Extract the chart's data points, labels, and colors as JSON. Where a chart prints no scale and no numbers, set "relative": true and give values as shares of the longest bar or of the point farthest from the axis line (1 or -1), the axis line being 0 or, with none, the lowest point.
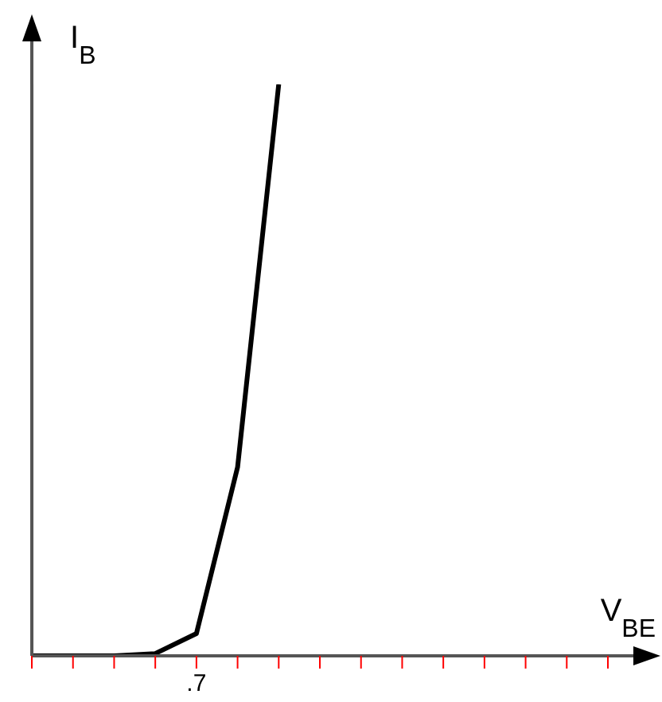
{
  "chart_data": {
    "type": "line",
    "xlabel": "V$_{BE}$",
    "ylabel": "I$_{B}$",
    "relative": true,
    "categories": [
      null,
      null,
      null,
      null,
      null,
      null,
      null,
      null,
      null,
      null,
      null,
      null,
      null,
      null,
      null
    ],
    "series": [
      {
        "color": "#000000",
        "values": [
          0,
          0,
          0,
          0.004,
          0.039,
          0.33,
          1,
          null,
          null,
          null,
          null,
          null,
          null,
          null,
          null
        ]
      }
    ],
    "annotations": [
      ".7"
    ]
  }
}
